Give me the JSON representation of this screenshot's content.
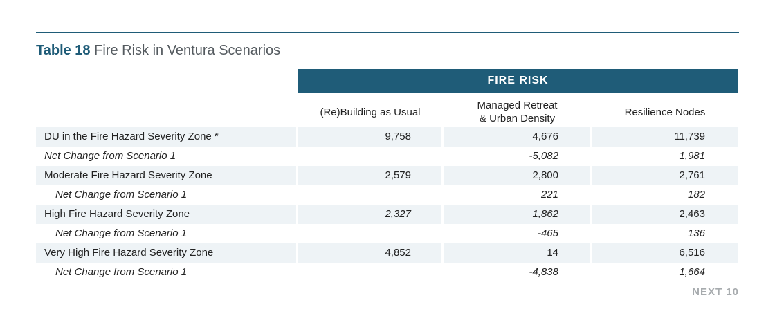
{
  "title": {
    "number": "Table 18",
    "text": "Fire Risk in Ventura Scenarios"
  },
  "group_header": "FIRE RISK",
  "columns": [
    {
      "line1": "(Re)Building as Usual",
      "line2": ""
    },
    {
      "line1": "Managed Retreat",
      "line2": "& Urban Density"
    },
    {
      "line1": "Resilience Nodes",
      "line2": ""
    }
  ],
  "rows": [
    {
      "label": "DU in the Fire Hazard Severity Zone *",
      "values": [
        "9,758",
        "4,676",
        "11,739"
      ]
    },
    {
      "label": "Net Change from Scenario 1",
      "values": [
        "",
        "-5,082",
        "1,981"
      ]
    },
    {
      "label": "Moderate Fire Hazard Severity Zone",
      "values": [
        "2,579",
        "2,800",
        "2,761"
      ]
    },
    {
      "label": "Net Change from Scenario 1",
      "values": [
        "",
        "221",
        "182"
      ]
    },
    {
      "label": "High Fire Hazard Severity Zone",
      "values": [
        "2,327",
        "1,862",
        "2,463"
      ]
    },
    {
      "label": "Net Change from Scenario 1",
      "values": [
        "",
        "-465",
        "136"
      ]
    },
    {
      "label": "Very High Fire Hazard Severity Zone",
      "values": [
        "4,852",
        "14",
        "6,516"
      ]
    },
    {
      "label": "Net Change from Scenario 1",
      "values": [
        "",
        "-4,838",
        "1,664"
      ]
    }
  ],
  "footer": "NEXT 10",
  "colors": {
    "accent": "#1f5c78",
    "shade": "#eef3f6",
    "footer": "#a7abae"
  }
}
